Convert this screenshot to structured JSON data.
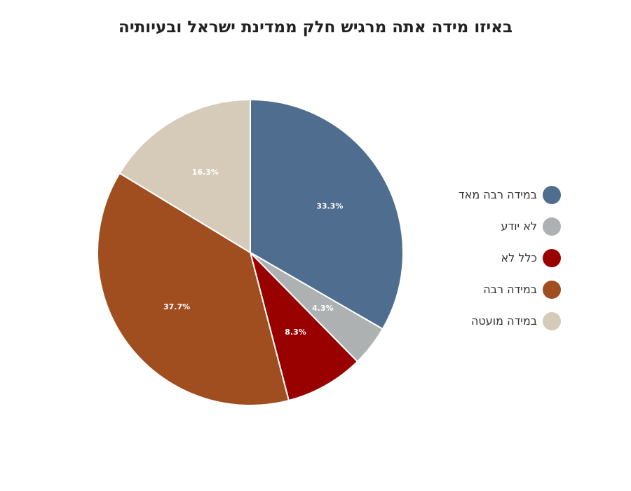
{
  "chart_data": {
    "type": "pie",
    "title": "באיזו מידה אתה מרגיש חלק ממדינת ישראל ובעיותיה",
    "slices": [
      {
        "label": "במידה רבה מאד",
        "value": 33.3,
        "display": "33.3%",
        "color": "#4e6d8f"
      },
      {
        "label": "לא יודע",
        "value": 4.3,
        "display": "4.3%",
        "color": "#adb1b1"
      },
      {
        "label": "כלל לא",
        "value": 8.3,
        "display": "8.3%",
        "color": "#990000"
      },
      {
        "label": "במידה רבה",
        "value": 37.7,
        "display": "37.7%",
        "color": "#a04e20"
      },
      {
        "label": "במידה מועטה",
        "value": 16.3,
        "display": "16.3%",
        "color": "#d6cbb8"
      }
    ],
    "legend_position": "right",
    "start_angle": "top",
    "direction": "clockwise"
  }
}
